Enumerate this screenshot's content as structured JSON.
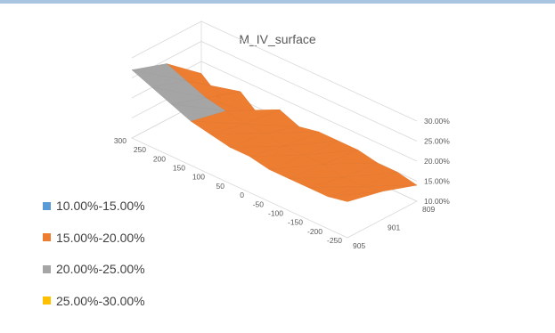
{
  "colors": {
    "top_bar": "#a9c4e0",
    "band_10_15": "#5b9bd5",
    "band_15_20": "#ed7d31",
    "band_20_25": "#a5a5a5",
    "band_25_30": "#ffc000",
    "grid": "#d9d9d9"
  },
  "chart_data": {
    "type": "surface",
    "title": "M_IV_surface",
    "legend_position": "left",
    "z_axis": {
      "ticks": [
        "10.00%",
        "15.00%",
        "20.00%",
        "25.00%",
        "30.00%"
      ],
      "range": [
        0.1,
        0.3
      ]
    },
    "strike_axis": {
      "ticks": [
        "300",
        "250",
        "200",
        "150",
        "100",
        "50",
        "0",
        "-50",
        "-100",
        "-150",
        "-200",
        "-250"
      ]
    },
    "maturity_axis": {
      "ticks": [
        "809",
        "901",
        "905"
      ]
    },
    "bands": [
      {
        "name": "10.00%-15.00%",
        "min": 0.1,
        "max": 0.15
      },
      {
        "name": "15.00%-20.00%",
        "min": 0.15,
        "max": 0.2
      },
      {
        "name": "20.00%-25.00%",
        "min": 0.2,
        "max": 0.25
      },
      {
        "name": "25.00%-30.00%",
        "min": 0.25,
        "max": 0.3
      }
    ],
    "strikes": [
      300,
      250,
      200,
      150,
      100,
      50,
      0,
      -50,
      -100,
      -150,
      -200,
      -250
    ],
    "maturities": [
      "809",
      "901",
      "905"
    ],
    "z": [
      [
        0.27,
        0.24,
        0.17
      ],
      [
        0.25,
        0.22,
        0.13
      ],
      [
        0.23,
        0.2,
        0.17
      ],
      [
        0.21,
        0.19,
        0.13
      ],
      [
        0.2,
        0.18,
        0.17
      ],
      [
        0.19,
        0.18,
        0.15
      ],
      [
        0.19,
        0.17,
        0.16
      ],
      [
        0.18,
        0.17,
        0.16
      ],
      [
        0.18,
        0.17,
        0.16
      ],
      [
        0.18,
        0.16,
        0.15
      ],
      [
        0.18,
        0.16,
        0.15
      ],
      [
        0.19,
        0.17,
        0.14
      ]
    ]
  }
}
